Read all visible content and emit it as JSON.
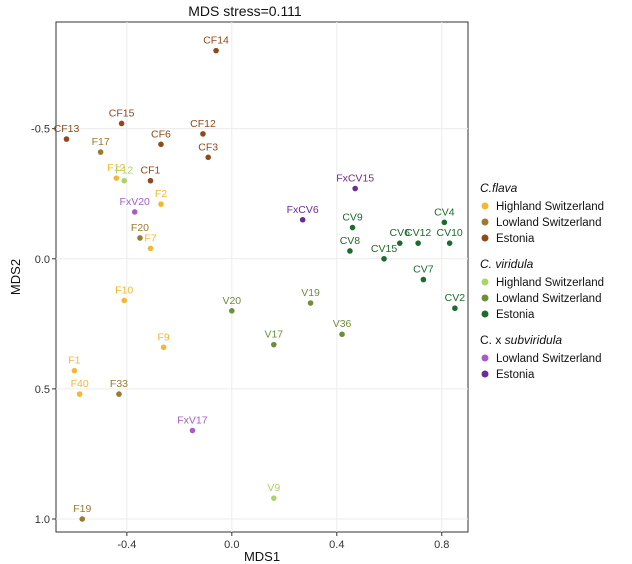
{
  "chart_data": {
    "type": "scatter",
    "title": "MDS stress=0.111",
    "xlabel": "MDS1",
    "ylabel": "MDS2",
    "xlim": [
      -0.67,
      0.9
    ],
    "ylim": [
      -0.91,
      1.05
    ],
    "y_reversed": true,
    "grid": true,
    "legend_position": "right",
    "x_ticks": [
      -0.4,
      0.0,
      0.4,
      0.8
    ],
    "x_tick_labels": [
      "-0.4",
      "0.0",
      "0.4",
      "0.8"
    ],
    "y_ticks": [
      -0.5,
      0.0,
      0.5,
      1.0
    ],
    "y_tick_labels": [
      "-0.5",
      "0.0",
      "0.5",
      "1.0"
    ],
    "legend": [
      {
        "title": "C.flava",
        "title_italic": "C.flava",
        "title_plain": "",
        "items": [
          {
            "label": "Highland Switzerland",
            "color": "#F5B731"
          },
          {
            "label": "Lowland Switzerland",
            "color": "#9A7A2E"
          },
          {
            "label": "Estonia",
            "color": "#8E4A1D"
          }
        ]
      },
      {
        "title": "C. viridula",
        "title_italic": "C. viridula",
        "title_plain": "",
        "items": [
          {
            "label": "Highland Switzerland",
            "color": "#A8D468"
          },
          {
            "label": "Lowland Switzerland",
            "color": "#6E8F3A"
          },
          {
            "label": "Estonia",
            "color": "#1E6B2E"
          }
        ]
      },
      {
        "title": "C. x subviridula",
        "title_plain": "C. x ",
        "title_italic": "subviridula",
        "items": [
          {
            "label": "Lowland Switzerland",
            "color": "#A65EC4"
          },
          {
            "label": "Estonia",
            "color": "#6B2D94"
          }
        ]
      }
    ],
    "series": [
      {
        "group": "C.flava",
        "name": "Highland Switzerland",
        "color": "#F5B731",
        "points": [
          {
            "label": "F12",
            "x": -0.44,
            "y": -0.31
          },
          {
            "label": "F2",
            "x": -0.27,
            "y": -0.21
          },
          {
            "label": "F7",
            "x": -0.31,
            "y": -0.04
          },
          {
            "label": "F10",
            "x": -0.41,
            "y": 0.16
          },
          {
            "label": "F9",
            "x": -0.26,
            "y": 0.34
          },
          {
            "label": "F1",
            "x": -0.6,
            "y": 0.43
          },
          {
            "label": "F40",
            "x": -0.58,
            "y": 0.52
          }
        ]
      },
      {
        "group": "C.flava",
        "name": "Lowland Switzerland",
        "color": "#9A7A2E",
        "points": [
          {
            "label": "F17",
            "x": -0.5,
            "y": -0.41
          },
          {
            "label": "F20",
            "x": -0.35,
            "y": -0.08
          },
          {
            "label": "F33",
            "x": -0.43,
            "y": 0.52
          },
          {
            "label": "F19",
            "x": -0.57,
            "y": 1.0
          }
        ]
      },
      {
        "group": "C.flava",
        "name": "Estonia",
        "color": "#8E4A1D",
        "points": [
          {
            "label": "CF14",
            "x": -0.06,
            "y": -0.8
          },
          {
            "label": "CF15",
            "x": -0.42,
            "y": -0.52
          },
          {
            "label": "CF13",
            "x": -0.63,
            "y": -0.46
          },
          {
            "label": "CF12",
            "x": -0.11,
            "y": -0.48
          },
          {
            "label": "CF6",
            "x": -0.27,
            "y": -0.44
          },
          {
            "label": "CF3",
            "x": -0.09,
            "y": -0.39
          },
          {
            "label": "CF1",
            "x": -0.31,
            "y": -0.3
          }
        ]
      },
      {
        "group": "C. viridula",
        "name": "Highland Switzerland",
        "color": "#A8D468",
        "points": [
          {
            "label": "F12",
            "x": -0.41,
            "y": -0.3
          },
          {
            "label": "V9",
            "x": 0.16,
            "y": 0.92
          }
        ]
      },
      {
        "group": "C. viridula",
        "name": "Lowland Switzerland",
        "color": "#6E8F3A",
        "points": [
          {
            "label": "V20",
            "x": 0.0,
            "y": 0.2
          },
          {
            "label": "V19",
            "x": 0.3,
            "y": 0.17
          },
          {
            "label": "V17",
            "x": 0.16,
            "y": 0.33
          },
          {
            "label": "V36",
            "x": 0.42,
            "y": 0.29
          }
        ]
      },
      {
        "group": "C. viridula",
        "name": "Estonia",
        "color": "#1E6B2E",
        "points": [
          {
            "label": "CV9",
            "x": 0.46,
            "y": -0.12
          },
          {
            "label": "CV4",
            "x": 0.81,
            "y": -0.14
          },
          {
            "label": "CV6",
            "x": 0.64,
            "y": -0.06
          },
          {
            "label": "CV12",
            "x": 0.71,
            "y": -0.06
          },
          {
            "label": "CV10",
            "x": 0.83,
            "y": -0.06
          },
          {
            "label": "CV8",
            "x": 0.45,
            "y": -0.03
          },
          {
            "label": "CV15",
            "x": 0.58,
            "y": -0.0
          },
          {
            "label": "CV7",
            "x": 0.73,
            "y": 0.08
          },
          {
            "label": "CV2",
            "x": 0.85,
            "y": 0.19
          }
        ]
      },
      {
        "group": "C. x subviridula",
        "name": "Lowland Switzerland",
        "color": "#A65EC4",
        "points": [
          {
            "label": "FxV20",
            "x": -0.37,
            "y": -0.18
          },
          {
            "label": "FxV17",
            "x": -0.15,
            "y": 0.66
          }
        ]
      },
      {
        "group": "C. x subviridula",
        "name": "Estonia",
        "color": "#6B2D94",
        "points": [
          {
            "label": "FxCV15",
            "x": 0.47,
            "y": -0.27
          },
          {
            "label": "FxCV6",
            "x": 0.27,
            "y": -0.15
          }
        ]
      }
    ]
  }
}
